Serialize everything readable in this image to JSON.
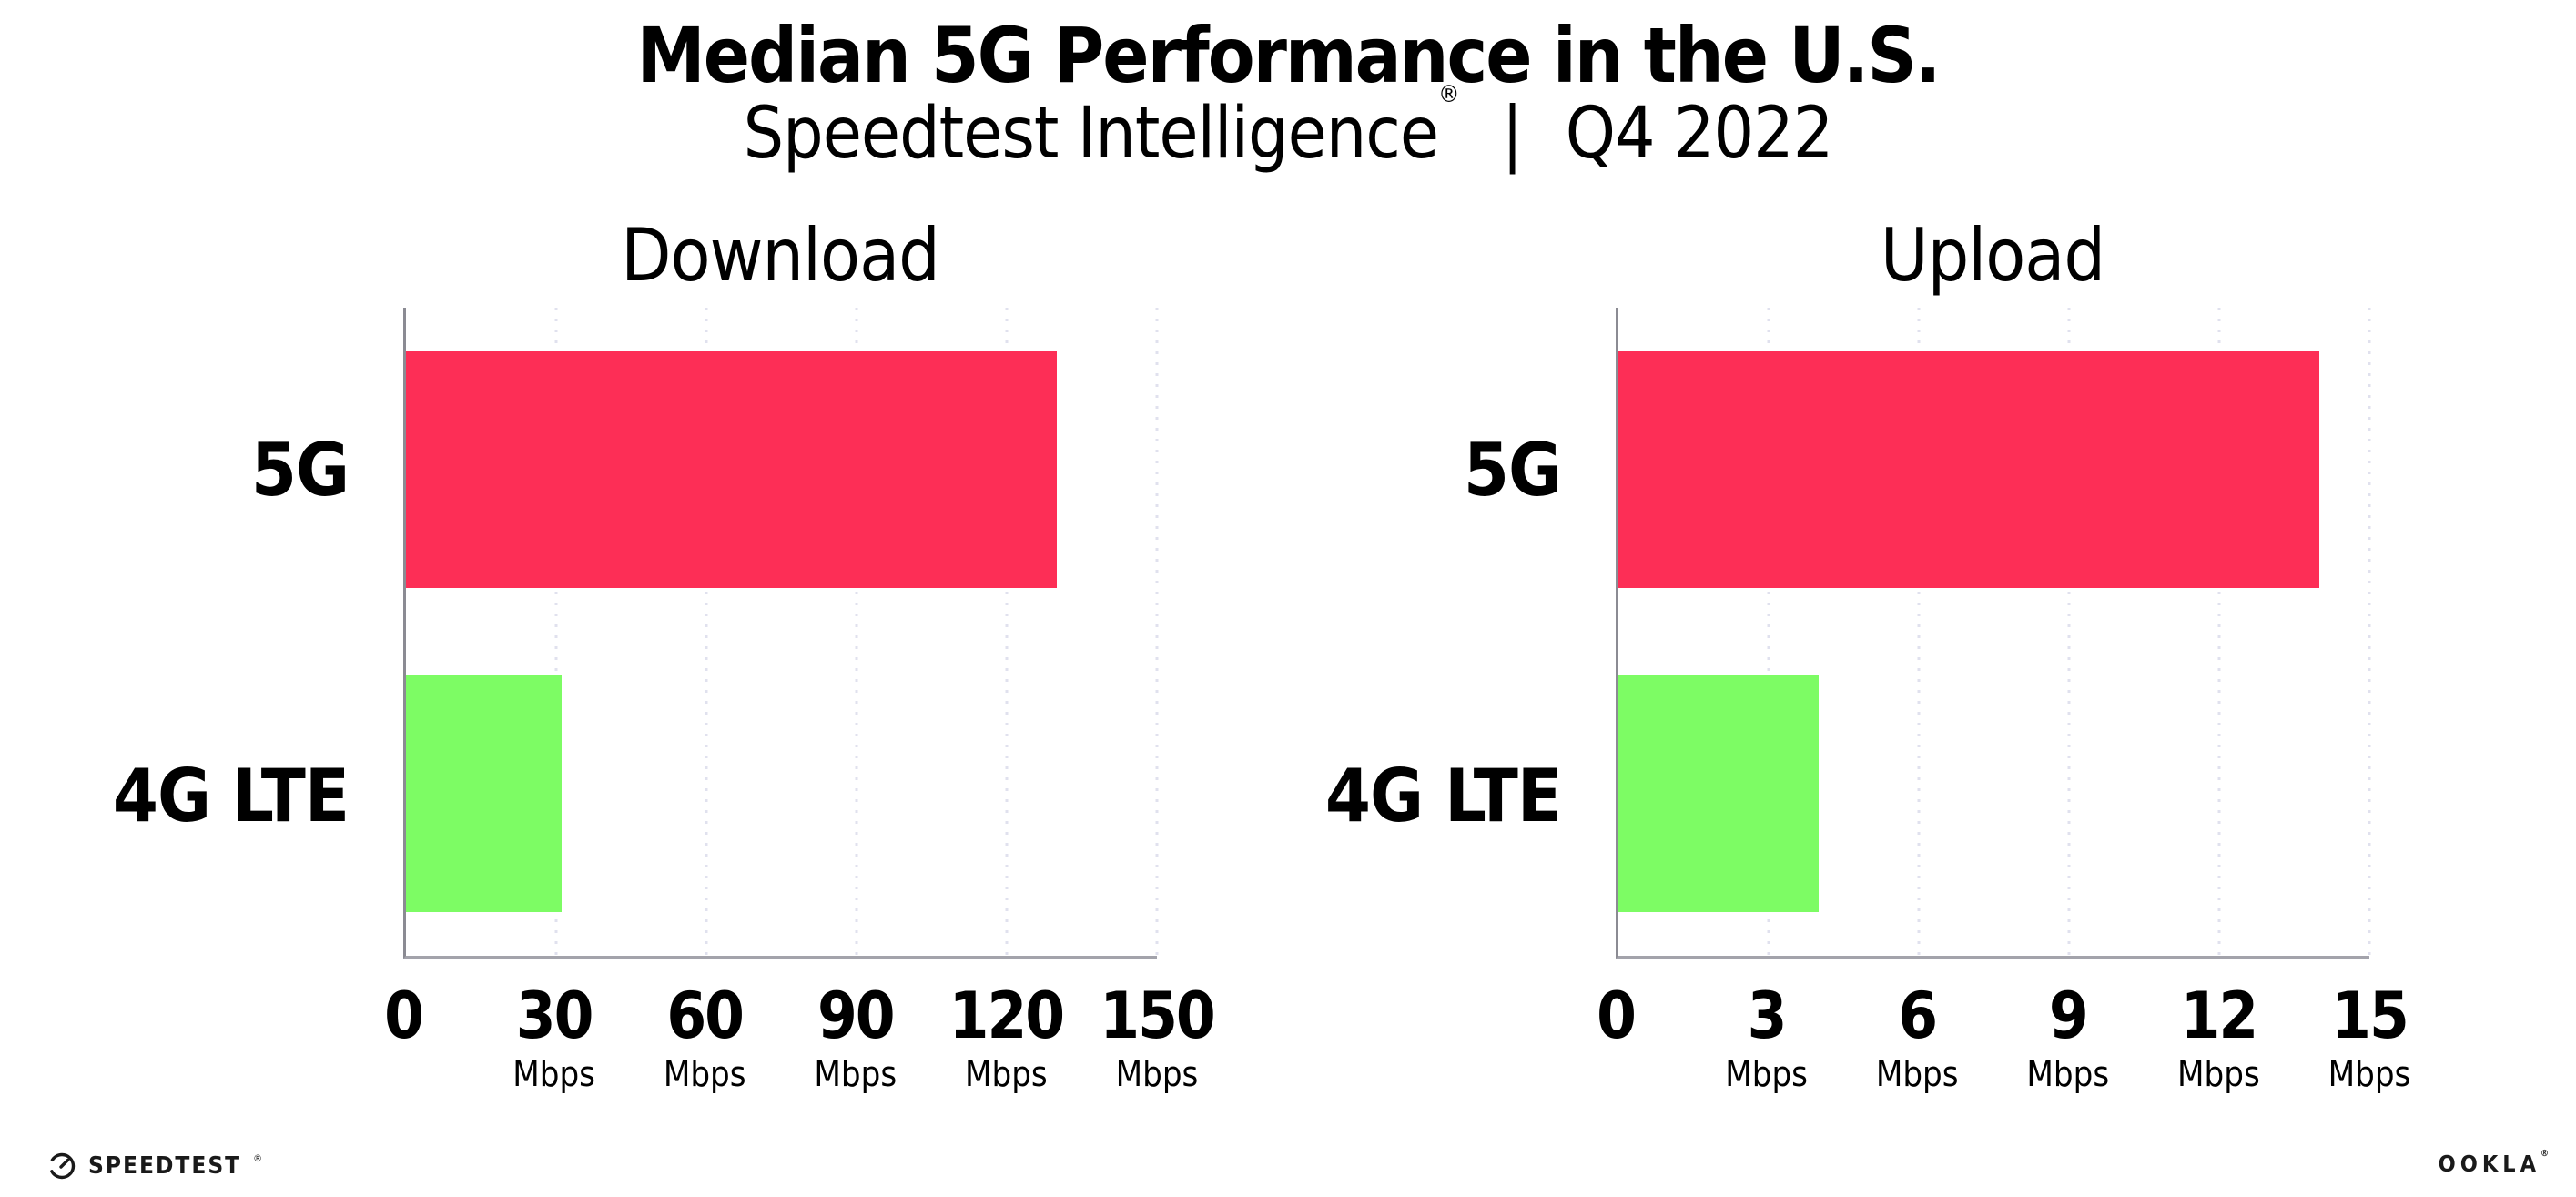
{
  "header": {
    "title": "Median 5G Performance in the U.S.",
    "subtitle": {
      "brand": "Speedtest Intelligence",
      "registered_mark": "®",
      "divider": "|",
      "period": "Q4 2022"
    }
  },
  "chart_data": [
    {
      "type": "bar",
      "orientation": "horizontal",
      "title": "Download",
      "categories": [
        "5G",
        "4G LTE"
      ],
      "values": [
        130,
        31
      ],
      "unit": "Mbps",
      "xlim": [
        0,
        150
      ],
      "xticks": [
        0,
        30,
        60,
        90,
        120,
        150
      ],
      "bar_colors": [
        "#FD2E56",
        "#7DFC64"
      ],
      "grid": "dotted-vertical",
      "legend": "none"
    },
    {
      "type": "bar",
      "orientation": "horizontal",
      "title": "Upload",
      "categories": [
        "5G",
        "4G LTE"
      ],
      "values": [
        14,
        4
      ],
      "unit": "Mbps",
      "xlim": [
        0,
        15
      ],
      "xticks": [
        0,
        3,
        6,
        9,
        12,
        15
      ],
      "bar_colors": [
        "#FD2E56",
        "#7DFC64"
      ],
      "grid": "dotted-vertical",
      "legend": "none"
    }
  ],
  "colors": {
    "bar_5g": "#FD2E56",
    "bar_4g_lte": "#7DFC64",
    "axis_y": "#8B8B93",
    "axis_x": "#A3A3AB",
    "gridline": "#E0E1EE",
    "text": "#000000",
    "background": "#FFFFFF"
  },
  "footer": {
    "speedtest_logo_text": "SPEEDTEST",
    "speedtest_mark": "®",
    "ookla_logo_text": "OOKLA",
    "ookla_mark": "®"
  }
}
